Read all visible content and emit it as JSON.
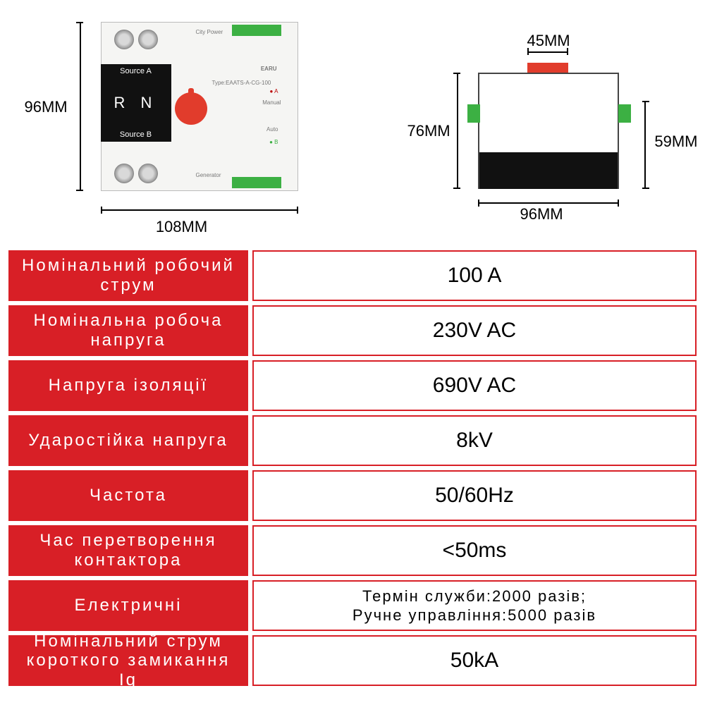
{
  "colors": {
    "label_bg": "#d81f26",
    "value_border": "#d81f26",
    "value_text": "#000000",
    "label_text": "#ffffff",
    "page_bg": "#ffffff"
  },
  "diagram": {
    "front": {
      "height_label": "96MM",
      "width_label": "108MM",
      "source_a": "Source A",
      "source_b": "Source B",
      "rn": "R  N",
      "city_power": "City Power",
      "generator": "Generator",
      "brand": "EARU",
      "type_line": "Type:EAATS-A-CG-100"
    },
    "side": {
      "top_label": "45MM",
      "left_label": "76MM",
      "right_label": "59MM",
      "bottom_label": "96MM"
    }
  },
  "specs": [
    {
      "label": "Номінальний робочий струм",
      "value": "100 A"
    },
    {
      "label": "Номінальна робоча напруга",
      "value": "230V AC"
    },
    {
      "label": "Напруга ізоляції",
      "value": "690V AC"
    },
    {
      "label": "Ударостійка напруга",
      "value": "8kV"
    },
    {
      "label": "Частота",
      "value": "50/60Hz"
    },
    {
      "label": "Час перетворення контактора",
      "value": "<50ms"
    },
    {
      "label": "Електричні",
      "value": "Термін служби:2000 разів;\nРучне управління:5000 разів",
      "small": true
    },
    {
      "label": "Номінальний струм короткого замикання Iq",
      "value": "50kA"
    }
  ]
}
